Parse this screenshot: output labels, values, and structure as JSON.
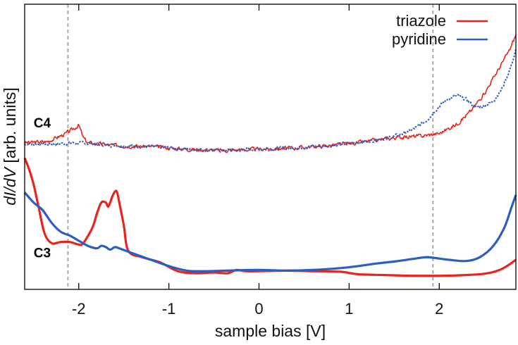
{
  "chart_data": {
    "type": "line",
    "title": "",
    "xlabel": "sample bias [V]",
    "ylabel_italic": "dI/dV",
    "ylabel_rest": " [arb. units]",
    "xlim": [
      -2.6,
      2.85
    ],
    "ylim": [
      0,
      1
    ],
    "x_ticks": [
      -2,
      -1,
      0,
      1,
      2
    ],
    "x_tick_labels": [
      "-2",
      "-1",
      "0",
      "1",
      "2"
    ],
    "grid": false,
    "legend_position": "top-right",
    "colors": {
      "triazole": "#e8241c",
      "pyridine": "#2a5fc1",
      "marker": "#a0a0a0"
    },
    "vertical_markers": [
      -2.12,
      1.93
    ],
    "legend": [
      {
        "name": "triazole",
        "color": "#e8241c"
      },
      {
        "name": "pyridine",
        "color": "#2a5fc1"
      }
    ],
    "curve_labels": [
      {
        "text": "C4",
        "x": -2.5,
        "y": 0.595
      },
      {
        "text": "C3",
        "x": -2.5,
        "y": 0.085
      }
    ],
    "series": [
      {
        "name": "triazole",
        "group": "C4",
        "style": "solid",
        "noise": 0.012,
        "seed": 3,
        "points": [
          [
            -2.6,
            0.535
          ],
          [
            -2.35,
            0.54
          ],
          [
            -2.25,
            0.555
          ],
          [
            -2.15,
            0.57
          ],
          [
            -2.05,
            0.592
          ],
          [
            -2.0,
            0.605
          ],
          [
            -1.95,
            0.555
          ],
          [
            -1.9,
            0.535
          ],
          [
            -1.6,
            0.525
          ],
          [
            -1.2,
            0.52
          ],
          [
            -0.8,
            0.51
          ],
          [
            -0.4,
            0.505
          ],
          [
            0.0,
            0.51
          ],
          [
            0.4,
            0.515
          ],
          [
            0.8,
            0.525
          ],
          [
            1.2,
            0.54
          ],
          [
            1.5,
            0.555
          ],
          [
            1.8,
            0.562
          ],
          [
            2.0,
            0.572
          ],
          [
            2.2,
            0.61
          ],
          [
            2.35,
            0.66
          ],
          [
            2.5,
            0.73
          ],
          [
            2.65,
            0.82
          ],
          [
            2.78,
            0.9
          ],
          [
            2.85,
            0.96
          ]
        ]
      },
      {
        "name": "pyridine",
        "group": "C4",
        "style": "dotted",
        "noise": 0.01,
        "seed": 7,
        "points": [
          [
            -2.6,
            0.53
          ],
          [
            -2.3,
            0.53
          ],
          [
            -2.0,
            0.535
          ],
          [
            -1.6,
            0.525
          ],
          [
            -1.2,
            0.52
          ],
          [
            -0.8,
            0.51
          ],
          [
            -0.4,
            0.505
          ],
          [
            0.0,
            0.51
          ],
          [
            0.4,
            0.515
          ],
          [
            0.8,
            0.525
          ],
          [
            1.2,
            0.54
          ],
          [
            1.5,
            0.56
          ],
          [
            1.7,
            0.585
          ],
          [
            1.85,
            0.62
          ],
          [
            2.0,
            0.68
          ],
          [
            2.1,
            0.71
          ],
          [
            2.2,
            0.72
          ],
          [
            2.3,
            0.705
          ],
          [
            2.4,
            0.675
          ],
          [
            2.5,
            0.68
          ],
          [
            2.6,
            0.7
          ],
          [
            2.7,
            0.75
          ],
          [
            2.8,
            0.84
          ],
          [
            2.85,
            0.9
          ]
        ]
      },
      {
        "name": "triazole",
        "group": "C3",
        "style": "thick",
        "noise": 0,
        "seed": 0,
        "points": [
          [
            -2.6,
            0.475
          ],
          [
            -2.55,
            0.43
          ],
          [
            -2.5,
            0.37
          ],
          [
            -2.45,
            0.29
          ],
          [
            -2.38,
            0.18
          ],
          [
            -2.3,
            0.14
          ],
          [
            -2.2,
            0.145
          ],
          [
            -2.1,
            0.145
          ],
          [
            -2.0,
            0.135
          ],
          [
            -1.95,
            0.14
          ],
          [
            -1.85,
            0.2
          ],
          [
            -1.8,
            0.255
          ],
          [
            -1.75,
            0.3
          ],
          [
            -1.7,
            0.3
          ],
          [
            -1.67,
            0.285
          ],
          [
            -1.62,
            0.33
          ],
          [
            -1.58,
            0.345
          ],
          [
            -1.55,
            0.3
          ],
          [
            -1.5,
            0.21
          ],
          [
            -1.45,
            0.11
          ],
          [
            -1.3,
            0.085
          ],
          [
            -1.1,
            0.065
          ],
          [
            -0.9,
            0.03
          ],
          [
            -0.7,
            0.022
          ],
          [
            -0.5,
            0.025
          ],
          [
            -0.35,
            0.022
          ],
          [
            -0.25,
            0.035
          ],
          [
            -0.15,
            0.03
          ],
          [
            0.0,
            0.03
          ],
          [
            0.3,
            0.032
          ],
          [
            0.6,
            0.03
          ],
          [
            0.9,
            0.028
          ],
          [
            1.1,
            0.018
          ],
          [
            1.4,
            0.015
          ],
          [
            1.7,
            0.012
          ],
          [
            2.0,
            0.012
          ],
          [
            2.3,
            0.015
          ],
          [
            2.5,
            0.02
          ],
          [
            2.65,
            0.032
          ],
          [
            2.75,
            0.05
          ],
          [
            2.85,
            0.075
          ]
        ]
      },
      {
        "name": "pyridine",
        "group": "C3",
        "style": "thick",
        "noise": 0,
        "seed": 0,
        "points": [
          [
            -2.6,
            0.34
          ],
          [
            -2.5,
            0.3
          ],
          [
            -2.4,
            0.27
          ],
          [
            -2.3,
            0.22
          ],
          [
            -2.2,
            0.185
          ],
          [
            -2.1,
            0.17
          ],
          [
            -2.0,
            0.15
          ],
          [
            -1.9,
            0.13
          ],
          [
            -1.8,
            0.12
          ],
          [
            -1.75,
            0.13
          ],
          [
            -1.7,
            0.125
          ],
          [
            -1.65,
            0.115
          ],
          [
            -1.6,
            0.125
          ],
          [
            -1.55,
            0.12
          ],
          [
            -1.4,
            0.1
          ],
          [
            -1.2,
            0.075
          ],
          [
            -1.0,
            0.05
          ],
          [
            -0.8,
            0.032
          ],
          [
            -0.6,
            0.03
          ],
          [
            -0.3,
            0.033
          ],
          [
            0.0,
            0.035
          ],
          [
            0.3,
            0.032
          ],
          [
            0.6,
            0.035
          ],
          [
            0.9,
            0.042
          ],
          [
            1.1,
            0.05
          ],
          [
            1.3,
            0.06
          ],
          [
            1.5,
            0.068
          ],
          [
            1.7,
            0.078
          ],
          [
            1.85,
            0.085
          ],
          [
            1.95,
            0.082
          ],
          [
            2.1,
            0.075
          ],
          [
            2.3,
            0.07
          ],
          [
            2.45,
            0.085
          ],
          [
            2.6,
            0.13
          ],
          [
            2.72,
            0.2
          ],
          [
            2.8,
            0.28
          ],
          [
            2.85,
            0.33
          ]
        ]
      }
    ]
  }
}
